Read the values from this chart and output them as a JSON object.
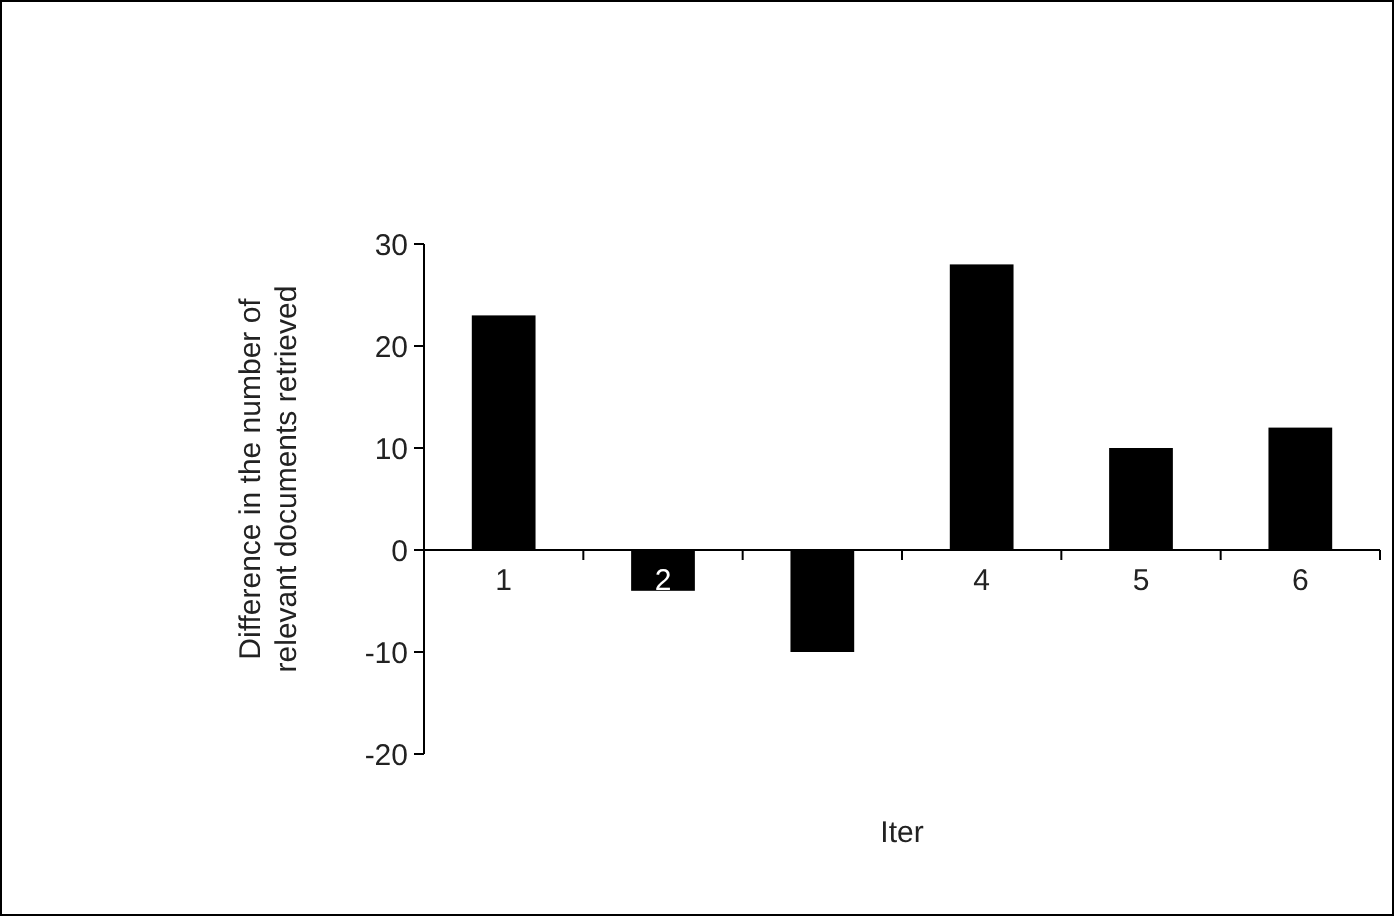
{
  "chart_data": {
    "type": "bar",
    "xlabel": "Iter",
    "ylabel": "Difference in the number of\nrelevant documents retrieved",
    "categories": [
      "1",
      "2",
      null,
      "4",
      "5",
      "6"
    ],
    "values": [
      23,
      -4,
      -10,
      28,
      10,
      12
    ],
    "color": "#000000",
    "ylim": [
      -20,
      30
    ],
    "yticks": [
      -20,
      -10,
      0,
      10,
      20,
      30
    ],
    "grid": false
  }
}
